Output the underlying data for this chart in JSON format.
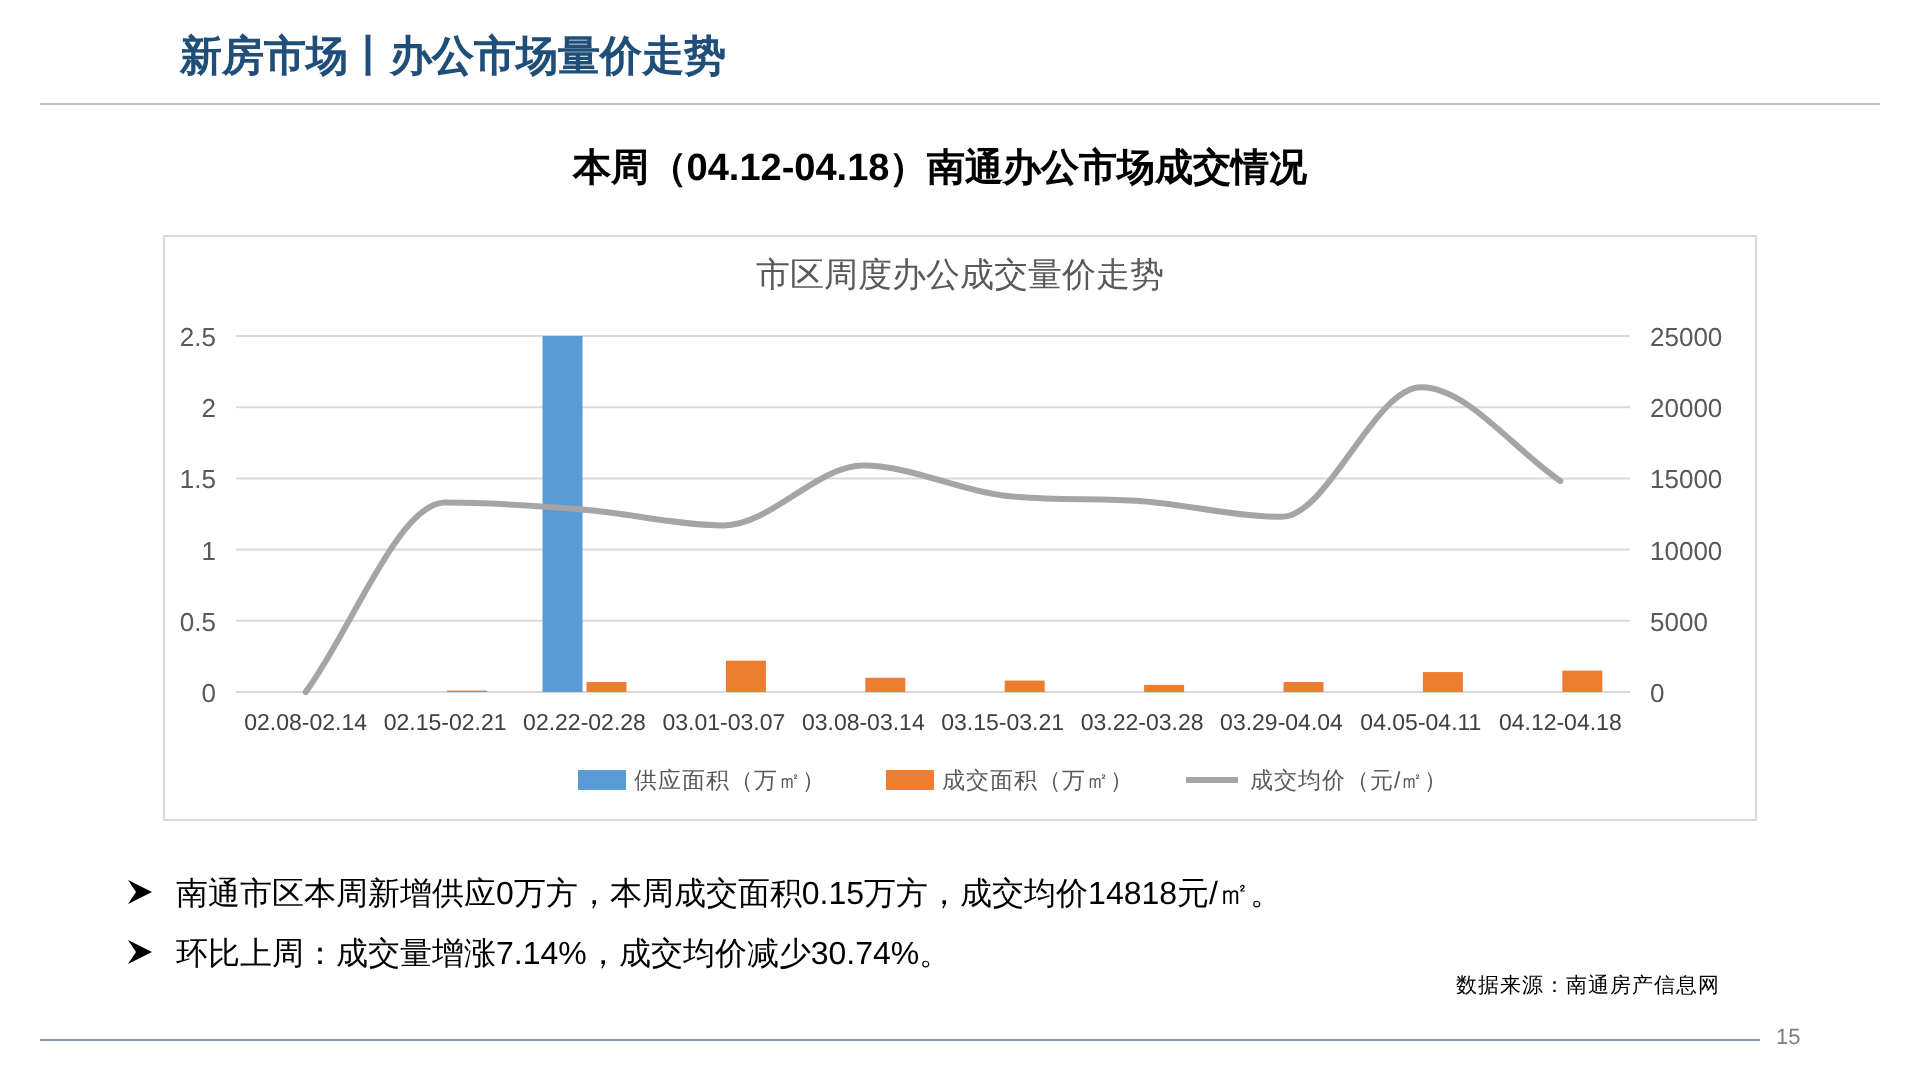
{
  "chart_data": {
    "type": "bar",
    "title": "本周（04.12-04.18）南通办公市场成交情况",
    "subtitle": "市区周度办公成交量价走势",
    "categories": [
      "02.08-02.14",
      "02.15-02.21",
      "02.22-02.28",
      "03.01-03.07",
      "03.08-03.14",
      "03.15-03.21",
      "03.22-03.28",
      "03.29-04.04",
      "04.05-04.11",
      "04.12-04.18"
    ],
    "series": [
      {
        "name": "供应面积（万㎡）",
        "color": "#5b9bd5",
        "values": [
          0,
          0,
          2.5,
          0,
          0,
          0,
          0,
          0,
          0,
          0
        ]
      },
      {
        "name": "成交面积（万㎡）",
        "color": "#ed7d31",
        "values": [
          0,
          0.01,
          0.07,
          0.22,
          0.1,
          0.08,
          0.05,
          0.07,
          0.14,
          0.15
        ]
      },
      {
        "name": "成交均价（元/㎡）",
        "type": "line",
        "axis": "y2",
        "color": "#a5a5a5",
        "values": [
          0,
          13300,
          12800,
          11700,
          15900,
          13800,
          13400,
          12300,
          21400,
          14818
        ]
      }
    ],
    "ylim": [
      0,
      2.5
    ],
    "yticks": [
      0,
      0.5,
      1,
      1.5,
      2,
      2.5
    ],
    "y2lim": [
      0,
      25000
    ],
    "y2ticks": [
      0,
      5000,
      10000,
      15000,
      20000,
      25000
    ],
    "grid": "y",
    "legend": "bottom",
    "annotations": [
      "新房市场丨办公市场量价走势",
      "南通市区本周新增供应0万方，本周成交面积0.15万方，成交均价14818元/㎡。",
      "环比上周：成交量增涨7.14%，成交均价减少30.74%。",
      "数据来源：南通房产信息网",
      "15"
    ]
  }
}
